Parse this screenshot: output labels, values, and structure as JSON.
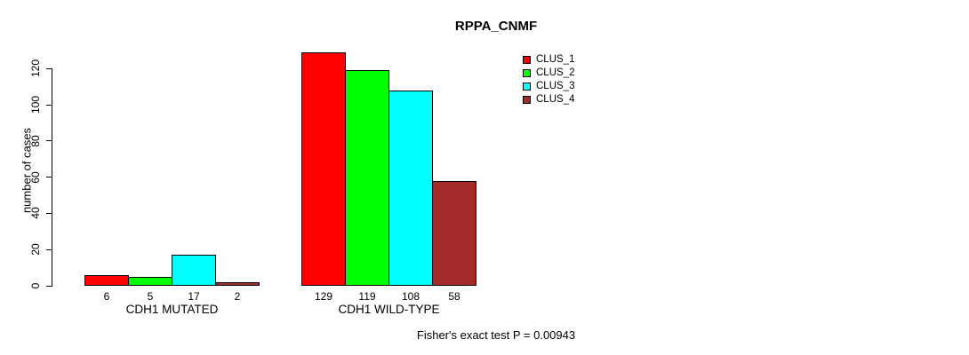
{
  "chart_data": {
    "type": "bar",
    "title": "RPPA_CNMF",
    "ylabel": "number of cases",
    "xlabel": "",
    "categories": [
      "CDH1 MUTATED",
      "CDH1 WILD-TYPE"
    ],
    "series": [
      {
        "name": "CLUS_1",
        "color": "#ff0000",
        "values": [
          6,
          129
        ]
      },
      {
        "name": "CLUS_2",
        "color": "#00ff00",
        "values": [
          5,
          119
        ]
      },
      {
        "name": "CLUS_3",
        "color": "#00ffff",
        "values": [
          17,
          108
        ]
      },
      {
        "name": "CLUS_4",
        "color": "#a52a2a",
        "values": [
          2,
          58
        ]
      }
    ],
    "bar_value_labels": [
      [
        "6",
        "5",
        "17",
        "2"
      ],
      [
        "129",
        "119",
        "108",
        "58"
      ]
    ],
    "yticks": [
      0,
      20,
      40,
      60,
      80,
      100,
      120
    ],
    "ylim": [
      0,
      129
    ],
    "grid": false,
    "legend_position": "top-right",
    "legend_entries": [
      "CLUS_1",
      "CLUS_2",
      "CLUS_3",
      "CLUS_4"
    ],
    "annotation": "Fisher's exact test P = 0.00943",
    "background_color": "#ffffff",
    "axis_color": "#000000",
    "bar_border_color": "#000000"
  }
}
